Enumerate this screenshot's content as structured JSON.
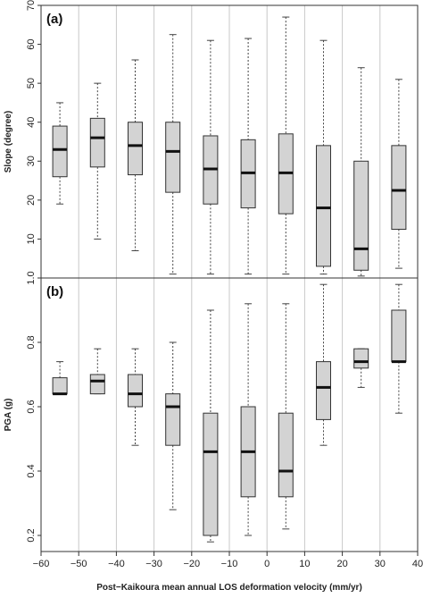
{
  "chart_data": [
    {
      "type": "box",
      "panel_label": "(a)",
      "ylabel": "Slope (degree)",
      "ylim": [
        0,
        70
      ],
      "yticks": [
        10,
        20,
        30,
        40,
        50,
        60,
        70
      ],
      "xlim": [
        -60,
        40
      ],
      "grid": "vertical lines at category boundaries",
      "boxes": [
        {
          "x": -55,
          "min": 19,
          "q1": 26,
          "median": 33,
          "q3": 39,
          "max": 45
        },
        {
          "x": -45,
          "min": 10,
          "q1": 28.5,
          "median": 36,
          "q3": 41,
          "max": 50
        },
        {
          "x": -35,
          "min": 7,
          "q1": 26.5,
          "median": 34,
          "q3": 40,
          "max": 56
        },
        {
          "x": -25,
          "min": 1,
          "q1": 22,
          "median": 32.5,
          "q3": 40,
          "max": 62.5
        },
        {
          "x": -15,
          "min": 1,
          "q1": 19,
          "median": 28,
          "q3": 36.5,
          "max": 61
        },
        {
          "x": -5,
          "min": 1,
          "q1": 18,
          "median": 27,
          "q3": 35.5,
          "max": 61.5
        },
        {
          "x": 5,
          "min": 1,
          "q1": 16.5,
          "median": 27,
          "q3": 37,
          "max": 67
        },
        {
          "x": 15,
          "min": 1,
          "q1": 3,
          "median": 18,
          "q3": 34,
          "max": 61
        },
        {
          "x": 25,
          "min": 0.5,
          "q1": 2,
          "median": 7.5,
          "q3": 30,
          "max": 54
        },
        {
          "x": 35,
          "min": 2.5,
          "q1": 12.5,
          "median": 22.5,
          "q3": 34,
          "max": 51
        }
      ]
    },
    {
      "type": "box",
      "panel_label": "(b)",
      "ylabel": "PGA (g)",
      "ylim": [
        0.15,
        1.0
      ],
      "yticks": [
        0.2,
        0.4,
        0.6,
        0.8,
        1.0
      ],
      "ytick_labels": [
        "0.2",
        "0.4",
        "0.6",
        "0.8",
        "1.0"
      ],
      "xlabel": "Post−Kaikoura mean annual LOS deformation velocity (mm/yr)",
      "xlim": [
        -60,
        40
      ],
      "xticks": [
        -60,
        -50,
        -40,
        -30,
        -20,
        -10,
        0,
        10,
        20,
        30,
        40
      ],
      "xtick_labels": [
        "−60",
        "−50",
        "−40",
        "−30",
        "−20",
        "−10",
        "0",
        "10",
        "20",
        "30",
        "40"
      ],
      "grid": "vertical lines at category boundaries",
      "boxes": [
        {
          "x": -55,
          "min": 0.64,
          "q1": 0.64,
          "median": 0.64,
          "q3": 0.69,
          "max": 0.74
        },
        {
          "x": -45,
          "min": 0.64,
          "q1": 0.64,
          "median": 0.68,
          "q3": 0.7,
          "max": 0.78
        },
        {
          "x": -35,
          "min": 0.48,
          "q1": 0.6,
          "median": 0.64,
          "q3": 0.7,
          "max": 0.78
        },
        {
          "x": -25,
          "min": 0.28,
          "q1": 0.48,
          "median": 0.6,
          "q3": 0.64,
          "max": 0.8
        },
        {
          "x": -15,
          "min": 0.18,
          "q1": 0.2,
          "median": 0.46,
          "q3": 0.58,
          "max": 0.9
        },
        {
          "x": -5,
          "min": 0.2,
          "q1": 0.32,
          "median": 0.46,
          "q3": 0.6,
          "max": 0.92
        },
        {
          "x": 5,
          "min": 0.22,
          "q1": 0.32,
          "median": 0.4,
          "q3": 0.58,
          "max": 0.92
        },
        {
          "x": 15,
          "min": 0.48,
          "q1": 0.56,
          "median": 0.66,
          "q3": 0.74,
          "max": 0.98
        },
        {
          "x": 25,
          "min": 0.66,
          "q1": 0.72,
          "median": 0.74,
          "q3": 0.78,
          "max": 0.78
        },
        {
          "x": 35,
          "min": 0.58,
          "q1": 0.74,
          "median": 0.74,
          "q3": 0.9,
          "max": 0.98
        }
      ]
    }
  ]
}
